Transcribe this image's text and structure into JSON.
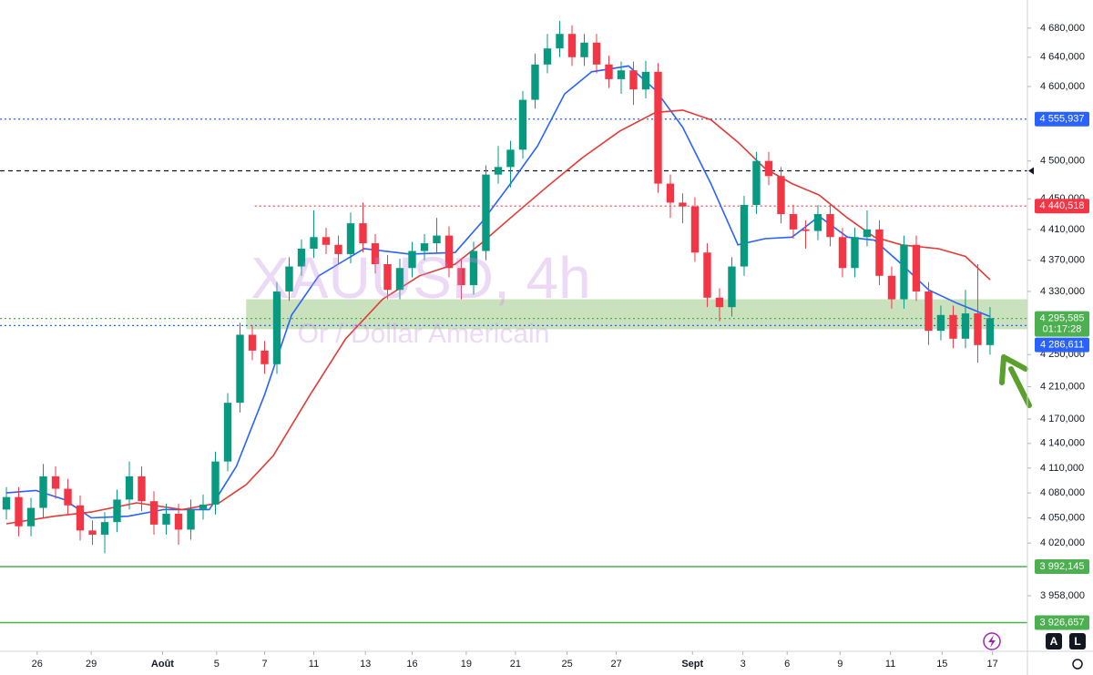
{
  "chart_data": {
    "type": "candlestick",
    "watermark_symbol": "XAUUSD, 4h",
    "watermark_name": "Or / Dollar Americain",
    "up_color": "#089981",
    "down_color": "#f23645",
    "log_scale": true,
    "grid": false,
    "xlim": [
      -0.52,
      83.04
    ],
    "ylim": [
      3893.6,
      4719
    ],
    "xticks": [
      {
        "value": 2.5,
        "label": "26"
      },
      {
        "value": 6.9,
        "label": "29"
      },
      {
        "value": 12.7,
        "label": "Août"
      },
      {
        "value": 17.1,
        "label": "5"
      },
      {
        "value": 21,
        "label": "7"
      },
      {
        "value": 25,
        "label": "11"
      },
      {
        "value": 29.2,
        "label": "13"
      },
      {
        "value": 33,
        "label": "16"
      },
      {
        "value": 37.4,
        "label": "19"
      },
      {
        "value": 41.4,
        "label": "21"
      },
      {
        "value": 45.6,
        "label": "25"
      },
      {
        "value": 49.6,
        "label": "27"
      },
      {
        "value": 55.8,
        "label": "Sept"
      },
      {
        "value": 59.9,
        "label": "3"
      },
      {
        "value": 63.5,
        "label": "6"
      },
      {
        "value": 67.8,
        "label": "9"
      },
      {
        "value": 71.9,
        "label": "11"
      },
      {
        "value": 76.1,
        "label": "15"
      },
      {
        "value": 80.2,
        "label": "17"
      }
    ],
    "yticks": [
      {
        "value": 4680,
        "label": "4 680,000"
      },
      {
        "value": 4640,
        "label": "4 640,000"
      },
      {
        "value": 4600,
        "label": "4 600,000"
      },
      {
        "value": 4500,
        "label": "4 500,000"
      },
      {
        "value": 4450,
        "label": "4 450,000"
      },
      {
        "value": 4410,
        "label": "4 410,000"
      },
      {
        "value": 4370,
        "label": "4 370,000"
      },
      {
        "value": 4330,
        "label": "4 330,000"
      },
      {
        "value": 4250,
        "label": "4 250,000"
      },
      {
        "value": 4210,
        "label": "4 210,000"
      },
      {
        "value": 4170,
        "label": "4 170,000"
      },
      {
        "value": 4140,
        "label": "4 140,000"
      },
      {
        "value": 4110,
        "label": "4 110,000"
      },
      {
        "value": 4080,
        "label": "4 080,000"
      },
      {
        "value": 4050,
        "label": "4 050,000"
      },
      {
        "value": 4020,
        "label": "4 020,000"
      },
      {
        "value": 3958,
        "label": "3 958,000"
      }
    ],
    "open": [
      4060,
      4075,
      4040,
      4062,
      4100,
      4085,
      4065,
      4035,
      4030,
      4045,
      4072,
      4100,
      4070,
      4042,
      4055,
      4036,
      4060,
      4066,
      4118,
      4190,
      4275,
      4255,
      4238,
      4330,
      4362,
      4385,
      4400,
      4390,
      4378,
      4418,
      4392,
      4365,
      4332,
      4360,
      4382,
      4392,
      4402,
      4360,
      4338,
      4382,
      4482,
      4492,
      4515,
      4582,
      4630,
      4652,
      4672,
      4640,
      4660,
      4630,
      4610,
      4622,
      4596,
      4620,
      4470,
      4445,
      4440,
      4380,
      4322,
      4310,
      4362,
      4442,
      4500,
      4480,
      4430,
      4410,
      4408,
      4430,
      4400,
      4360,
      4400,
      4410,
      4350,
      4320,
      4390,
      4330,
      4280,
      4300,
      4270,
      4302,
      4262
    ],
    "high": [
      4087,
      4087,
      4074,
      4115,
      4112,
      4097,
      4077,
      4047,
      4057,
      4084,
      4118,
      4112,
      4082,
      4067,
      4067,
      4072,
      4078,
      4130,
      4202,
      4290,
      4287,
      4267,
      4342,
      4374,
      4397,
      4435,
      4412,
      4402,
      4432,
      4445,
      4404,
      4377,
      4372,
      4394,
      4404,
      4425,
      4414,
      4372,
      4394,
      4494,
      4520,
      4527,
      4594,
      4645,
      4672,
      4690,
      4684,
      4672,
      4672,
      4642,
      4634,
      4634,
      4635,
      4632,
      4482,
      4457,
      4452,
      4392,
      4334,
      4374,
      4454,
      4512,
      4512,
      4492,
      4442,
      4422,
      4442,
      4442,
      4412,
      4412,
      4435,
      4422,
      4362,
      4402,
      4402,
      4342,
      4312,
      4312,
      4332,
      4365,
      4310
    ],
    "low": [
      4048,
      4028,
      4028,
      4050,
      4073,
      4053,
      4023,
      4018,
      4008,
      4033,
      4060,
      4058,
      4030,
      4030,
      4018,
      4024,
      4048,
      4054,
      4106,
      4178,
      4243,
      4226,
      4226,
      4318,
      4350,
      4373,
      4378,
      4366,
      4366,
      4380,
      4353,
      4320,
      4320,
      4348,
      4370,
      4380,
      4348,
      4320,
      4326,
      4370,
      4470,
      4465,
      4503,
      4570,
      4618,
      4640,
      4628,
      4628,
      4618,
      4598,
      4590,
      4575,
      4584,
      4458,
      4425,
      4418,
      4368,
      4310,
      4292,
      4298,
      4350,
      4430,
      4468,
      4418,
      4398,
      4385,
      4396,
      4388,
      4348,
      4348,
      4388,
      4338,
      4308,
      4308,
      4318,
      4262,
      4268,
      4258,
      4258,
      4240,
      4250
    ],
    "close": [
      4075,
      4040,
      4062,
      4100,
      4085,
      4065,
      4035,
      4030,
      4045,
      4072,
      4100,
      4070,
      4042,
      4055,
      4036,
      4060,
      4066,
      4118,
      4190,
      4275,
      4255,
      4238,
      4330,
      4362,
      4385,
      4400,
      4390,
      4378,
      4418,
      4392,
      4365,
      4332,
      4360,
      4382,
      4392,
      4402,
      4360,
      4338,
      4382,
      4482,
      4492,
      4515,
      4582,
      4630,
      4652,
      4672,
      4640,
      4660,
      4630,
      4610,
      4622,
      4596,
      4620,
      4470,
      4445,
      4440,
      4380,
      4322,
      4310,
      4362,
      4442,
      4500,
      4480,
      4430,
      4410,
      4408,
      4430,
      4400,
      4360,
      4400,
      4410,
      4350,
      4320,
      4390,
      4330,
      4280,
      4300,
      4270,
      4302,
      4262,
      4296
    ],
    "moving_averages": [
      {
        "color": "#2962ff",
        "x": [
          0,
          2.4,
          4.7,
          6.9,
          9.9,
          12.8,
          16.5,
          18.7,
          21,
          23.2,
          25.4,
          29.1,
          32.8,
          36.5,
          38.7,
          41,
          43.2,
          45.4,
          47.6,
          50.6,
          52.8,
          55,
          57.3,
          59.5,
          61.7,
          63.9,
          66.1,
          68.4,
          70.6,
          72.8,
          75,
          77.3,
          80
        ],
        "values": [
          4080,
          4083,
          4072,
          4050,
          4052,
          4060,
          4060,
          4112,
          4200,
          4300,
          4350,
          4385,
          4378,
          4380,
          4420,
          4470,
          4520,
          4590,
          4620,
          4628,
          4595,
          4545,
          4470,
          4390,
          4398,
          4400,
          4427,
          4400,
          4396,
          4365,
          4332,
          4315,
          4298
        ]
      },
      {
        "color": "#e53935",
        "x": [
          0,
          3.9,
          6.9,
          10.6,
          14.3,
          17.3,
          19.5,
          21.7,
          24.7,
          27.6,
          30.6,
          33.6,
          36.5,
          38.7,
          41,
          43.9,
          46.9,
          49.9,
          52.8,
          55,
          57.3,
          59.5,
          61.7,
          63.9,
          66.1,
          68.4,
          70.6,
          72.8,
          75.8,
          78,
          80
        ],
        "values": [
          4043,
          4052,
          4057,
          4068,
          4060,
          4068,
          4090,
          4125,
          4200,
          4270,
          4320,
          4350,
          4365,
          4393,
          4425,
          4465,
          4505,
          4540,
          4565,
          4568,
          4555,
          4525,
          4490,
          4470,
          4455,
          4425,
          4400,
          4390,
          4385,
          4375,
          4345
        ]
      }
    ],
    "zone": {
      "from": 4282,
      "to": 4320,
      "x_start": 19.5,
      "color": "#9cc985"
    },
    "price_lines": [
      {
        "value": 4555.937,
        "label": "4 555,937",
        "color": "#2962ff",
        "style": "dotted"
      },
      {
        "value": 4487,
        "color": "#131722",
        "style": "dashed"
      },
      {
        "value": 4440.518,
        "label": "4 440,518",
        "color": "#f23645",
        "style": "dotted",
        "x_start": 20.2
      },
      {
        "value": 4295.585,
        "label": "4 295,585",
        "sublabel": "01:17:28",
        "color": "#4caf50",
        "style": "dotted"
      },
      {
        "value": 4286.611,
        "label": "4 286,611",
        "color": "#2962ff",
        "style": "dotted"
      },
      {
        "value": 3992.145,
        "label": "3 992,145",
        "color": "#4caf50",
        "style": "solid"
      },
      {
        "value": 3926.657,
        "label": "3 926,657",
        "color": "#4caf50",
        "style": "solid"
      }
    ],
    "toolbar": [
      "A",
      "L"
    ]
  }
}
